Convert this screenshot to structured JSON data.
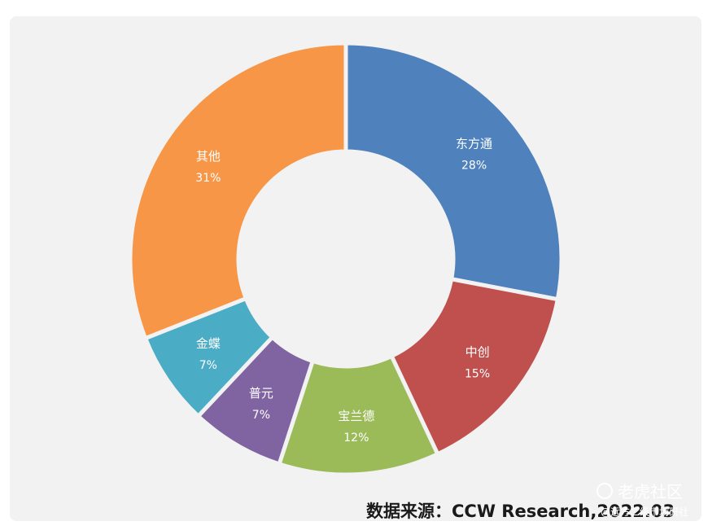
{
  "chart_data": {
    "type": "pie",
    "variant": "donut",
    "title": "",
    "slices": [
      {
        "label": "东方通",
        "value": 28,
        "value_label": "28%",
        "color": "#4f81bd"
      },
      {
        "label": "中创",
        "value": 15,
        "value_label": "15%",
        "color": "#c0504d"
      },
      {
        "label": "宝兰德",
        "value": 12,
        "value_label": "12%",
        "color": "#9bbb59"
      },
      {
        "label": "普元",
        "value": 7,
        "value_label": "7%",
        "color": "#8064a2"
      },
      {
        "label": "金蝶",
        "value": 7,
        "value_label": "7%",
        "color": "#4bacc6"
      },
      {
        "label": "其他",
        "value": 31,
        "value_label": "31%",
        "color": "#f79646"
      }
    ],
    "legend": "none"
  },
  "source_note": "数据来源：CCW Research,2022.03",
  "watermark": {
    "icon": "paw-icon",
    "main": "老虎社区",
    "sub": "@远方二级市场研社"
  },
  "colors": {
    "background": "#f2f2f2",
    "slice_border": "#f2f2f2",
    "label_text": "#ffffff"
  }
}
